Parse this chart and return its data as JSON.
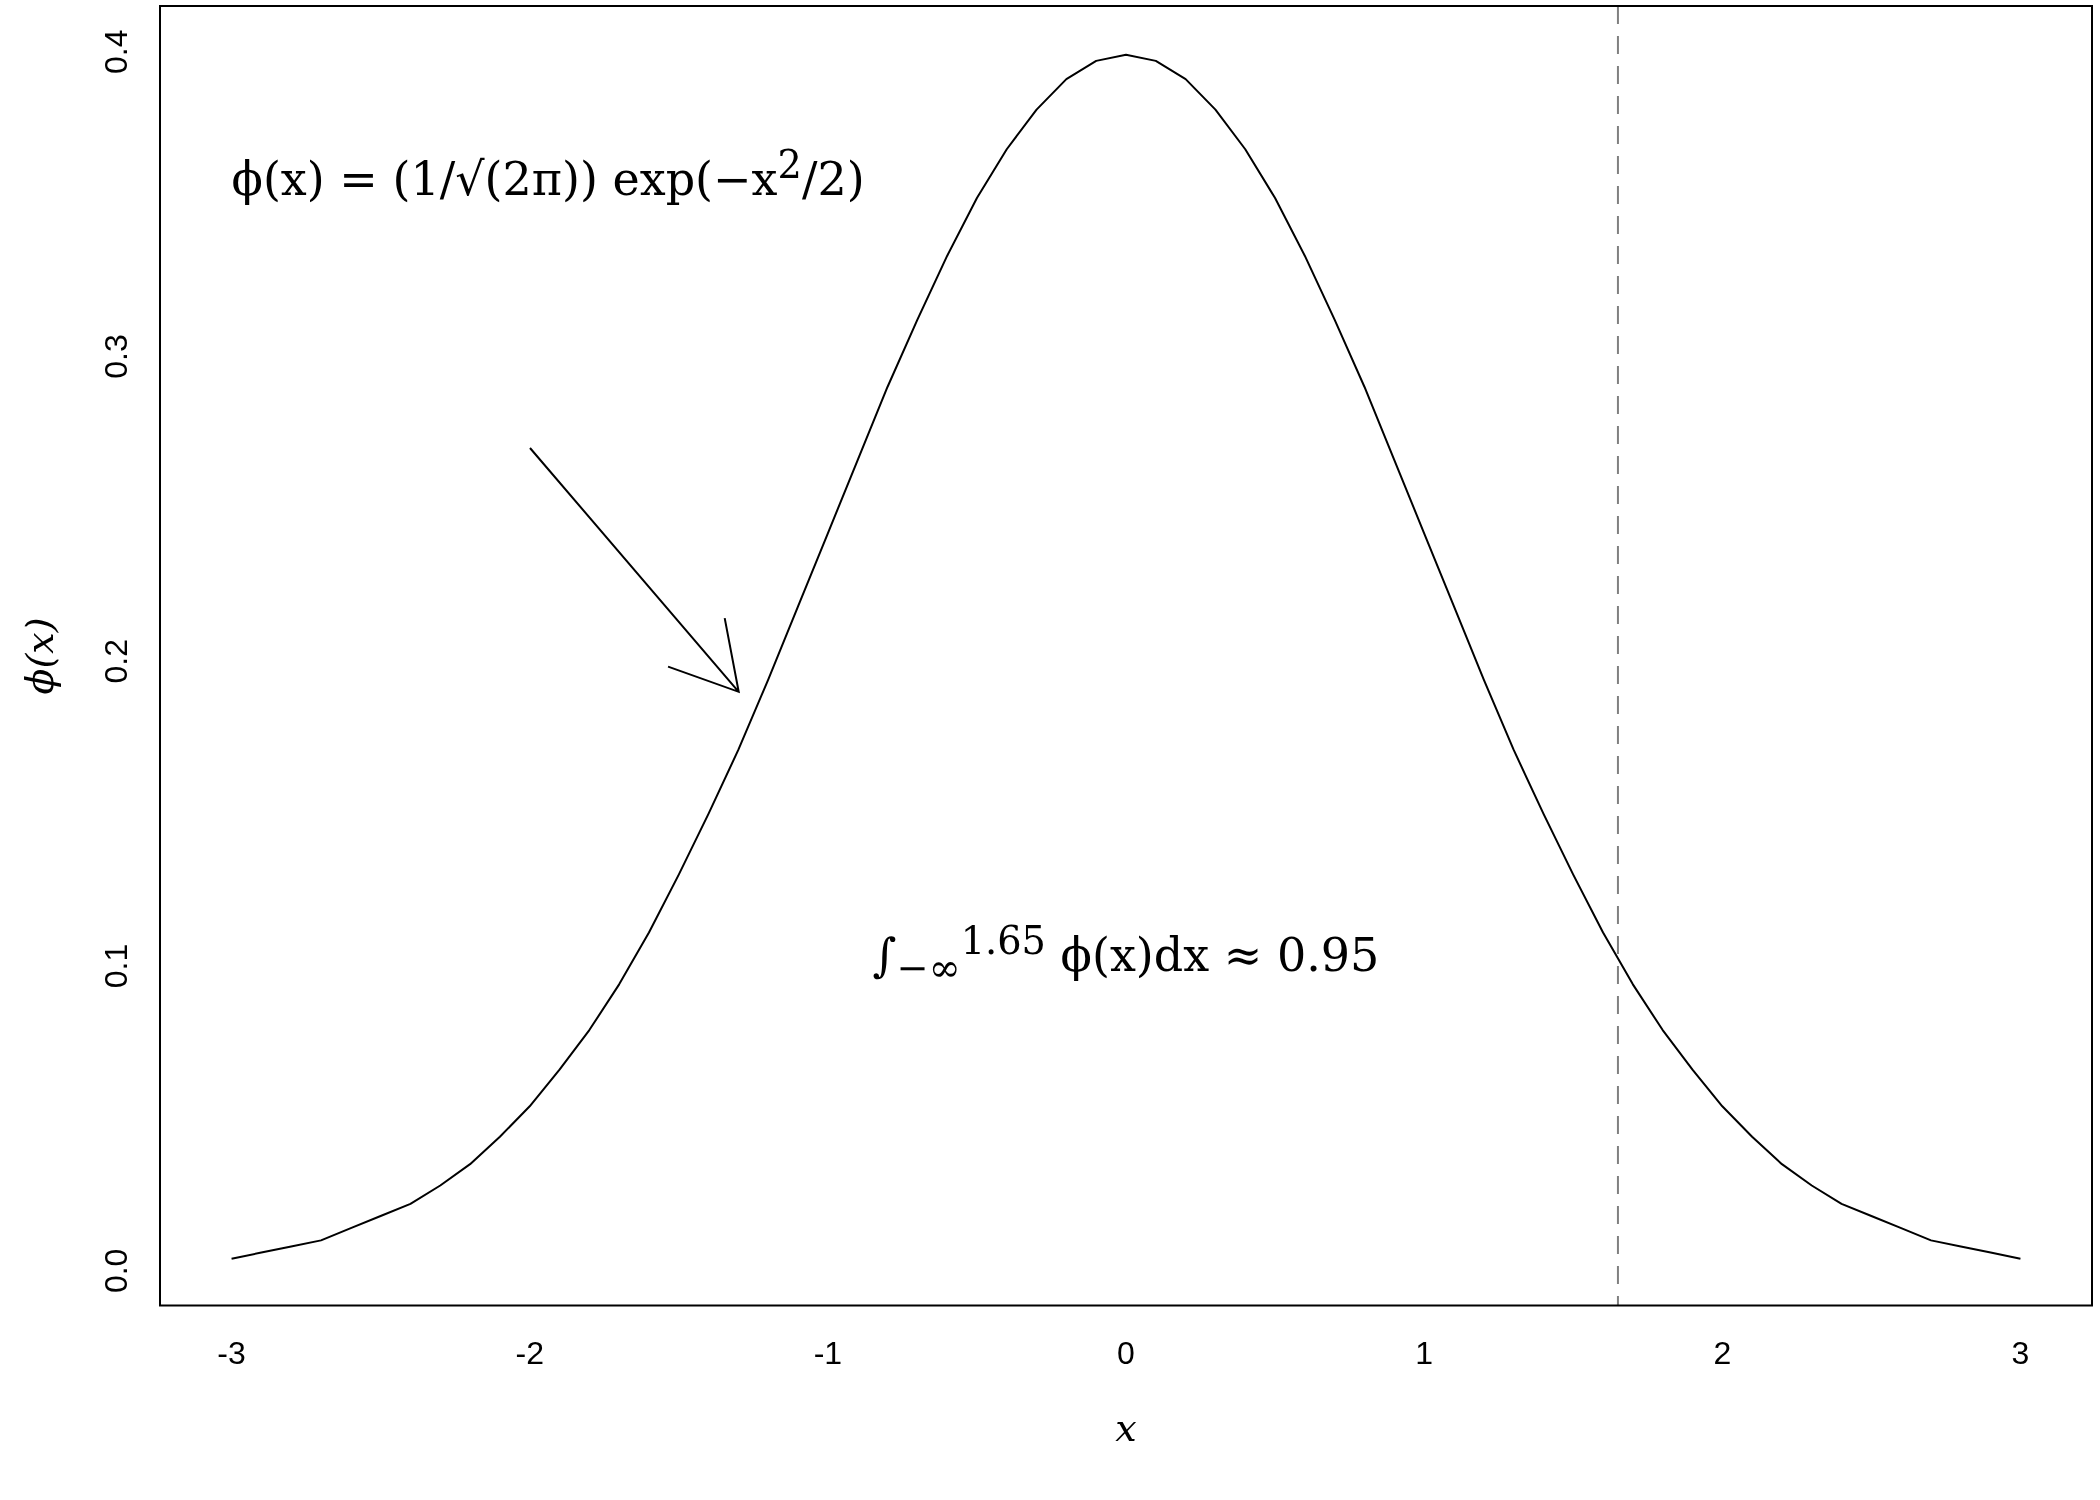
{
  "chart_data": {
    "type": "line",
    "xlabel": "x",
    "ylabel": "ϕ(x)",
    "x": [
      -3,
      -2.9,
      -2.8,
      -2.7,
      -2.6,
      -2.5,
      -2.4,
      -2.3,
      -2.2,
      -2.1,
      -2,
      -1.9,
      -1.8,
      -1.7,
      -1.6,
      -1.5,
      -1.4,
      -1.3,
      -1.2,
      -1.1,
      -1,
      -0.9,
      -0.8,
      -0.7,
      -0.6,
      -0.5,
      -0.4,
      -0.3,
      -0.2,
      -0.1,
      0,
      0.1,
      0.2,
      0.3,
      0.4,
      0.5,
      0.6,
      0.7,
      0.8,
      0.9,
      1,
      1.1,
      1.2,
      1.3,
      1.4,
      1.5,
      1.6,
      1.7,
      1.8,
      1.9,
      2,
      2.1,
      2.2,
      2.3,
      2.4,
      2.5,
      2.6,
      2.7,
      2.8,
      2.9,
      3
    ],
    "series": [
      {
        "color": "#000000",
        "values": [
          0.004,
          0.006,
          0.008,
          0.01,
          0.014,
          0.018,
          0.022,
          0.028,
          0.035,
          0.044,
          0.054,
          0.066,
          0.079,
          0.094,
          0.111,
          0.13,
          0.15,
          0.171,
          0.194,
          0.218,
          0.242,
          0.266,
          0.29,
          0.312,
          0.333,
          0.352,
          0.368,
          0.381,
          0.391,
          0.397,
          0.399,
          0.397,
          0.391,
          0.381,
          0.368,
          0.352,
          0.333,
          0.312,
          0.29,
          0.266,
          0.242,
          0.218,
          0.194,
          0.171,
          0.15,
          0.13,
          0.111,
          0.094,
          0.079,
          0.066,
          0.054,
          0.044,
          0.035,
          0.028,
          0.022,
          0.018,
          0.014,
          0.01,
          0.008,
          0.006,
          0.004
        ]
      }
    ],
    "xlim": [
      -3.24,
      3.24
    ],
    "xticks": [
      -3,
      -2,
      -1,
      0,
      1,
      2,
      3
    ],
    "ylim": [
      -0.0114,
      0.415
    ],
    "yticks": [
      {
        "value": 0,
        "label": "0.0"
      },
      {
        "value": 0.1,
        "label": "0.1"
      },
      {
        "value": 0.2,
        "label": "0.2"
      },
      {
        "value": 0.3,
        "label": "0.3"
      },
      {
        "value": 0.4,
        "label": "0.4"
      }
    ],
    "ref_lines": [
      {
        "axis": "x",
        "value": 1.65,
        "color": "#808080",
        "line_style": "dashed"
      }
    ],
    "annotations": [
      "ϕ(x) = (1/√(2π)) exp(−x$^{2}$/2)",
      "∫$_{−∞}$$^{1.65}$ ϕ(x)dx ≈ 0.95"
    ],
    "grid": false,
    "legend": false,
    "marker": "none",
    "line_style": "solid"
  }
}
